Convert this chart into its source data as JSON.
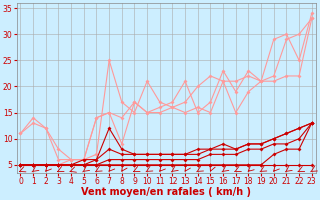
{
  "bg_color": "#cceeff",
  "grid_color": "#aaaaaa",
  "xlabel": "Vent moyen/en rafales ( km/h )",
  "xlabel_color": "#cc0000",
  "xlabel_fontsize": 7,
  "yticks": [
    5,
    10,
    15,
    20,
    25,
    30,
    35
  ],
  "xticks": [
    0,
    1,
    2,
    3,
    4,
    5,
    6,
    7,
    8,
    9,
    10,
    11,
    12,
    13,
    14,
    15,
    16,
    17,
    18,
    19,
    20,
    21,
    22,
    23
  ],
  "xlim": [
    -0.3,
    23.3
  ],
  "ylim": [
    3.5,
    36
  ],
  "tick_color": "#cc0000",
  "tick_fontsize": 5.5,
  "line_pink1_x": [
    0,
    1,
    2,
    3,
    4,
    5,
    6,
    7,
    8,
    9,
    10,
    11,
    12,
    13,
    14,
    15,
    16,
    17,
    18,
    19,
    20,
    21,
    22,
    23
  ],
  "line_pink1_y": [
    11,
    14,
    12,
    6,
    6,
    6,
    14,
    15,
    14,
    17,
    15,
    16,
    17,
    21,
    15,
    17,
    23,
    19,
    23,
    21,
    22,
    29,
    30,
    33
  ],
  "line_pink2_x": [
    0,
    1,
    2,
    3,
    4,
    5,
    6,
    7,
    8,
    9,
    10,
    11,
    12,
    13,
    14,
    15,
    16,
    17,
    18,
    19,
    20,
    21,
    22,
    23
  ],
  "line_pink2_y": [
    5,
    5,
    5,
    5,
    6,
    6,
    7,
    25,
    17,
    15,
    21,
    17,
    16,
    17,
    20,
    22,
    21,
    15,
    19,
    21,
    29,
    30,
    25,
    34
  ],
  "line_pink3_x": [
    0,
    1,
    2,
    3,
    4,
    5,
    6,
    7,
    8,
    9,
    10,
    11,
    12,
    13,
    14,
    15,
    16,
    17,
    18,
    19,
    20,
    21,
    22,
    23
  ],
  "line_pink3_y": [
    11,
    13,
    12,
    8,
    6,
    6,
    14,
    15,
    9,
    17,
    15,
    15,
    16,
    15,
    16,
    15,
    21,
    21,
    22,
    21,
    21,
    22,
    22,
    33
  ],
  "line_red1_x": [
    0,
    1,
    2,
    3,
    4,
    5,
    6,
    7,
    8,
    9,
    10,
    11,
    12,
    13,
    14,
    15,
    16,
    17,
    18,
    19,
    20,
    21,
    22,
    23
  ],
  "line_red1_y": [
    5,
    5,
    5,
    5,
    5,
    5,
    5,
    5,
    5,
    5,
    5,
    5,
    5,
    5,
    5,
    5,
    5,
    5,
    5,
    5,
    5,
    5,
    5,
    5
  ],
  "line_red2_x": [
    0,
    1,
    2,
    3,
    4,
    5,
    6,
    7,
    8,
    9,
    10,
    11,
    12,
    13,
    14,
    15,
    16,
    17,
    18,
    19,
    20,
    21,
    22,
    23
  ],
  "line_red2_y": [
    5,
    5,
    5,
    5,
    5,
    5,
    6,
    12,
    8,
    7,
    7,
    7,
    7,
    7,
    7,
    8,
    8,
    8,
    9,
    9,
    10,
    11,
    12,
    13
  ],
  "line_red3_x": [
    0,
    1,
    2,
    3,
    4,
    5,
    6,
    7,
    8,
    9,
    10,
    11,
    12,
    13,
    14,
    15,
    16,
    17,
    18,
    19,
    20,
    21,
    22,
    23
  ],
  "line_red3_y": [
    5,
    5,
    5,
    5,
    5,
    6,
    6,
    8,
    7,
    7,
    7,
    7,
    7,
    7,
    8,
    8,
    9,
    8,
    9,
    9,
    10,
    11,
    12,
    13
  ],
  "line_red4_x": [
    0,
    1,
    2,
    3,
    4,
    5,
    6,
    7,
    8,
    9,
    10,
    11,
    12,
    13,
    14,
    15,
    16,
    17,
    18,
    19,
    20,
    21,
    22,
    23
  ],
  "line_red4_y": [
    5,
    5,
    5,
    5,
    5,
    5,
    5,
    6,
    6,
    6,
    6,
    6,
    6,
    6,
    6,
    7,
    7,
    7,
    8,
    8,
    9,
    9,
    10,
    13
  ],
  "line_red5_x": [
    0,
    1,
    2,
    3,
    4,
    5,
    6,
    7,
    8,
    9,
    10,
    11,
    12,
    13,
    14,
    15,
    16,
    17,
    18,
    19,
    20,
    21,
    22,
    23
  ],
  "line_red5_y": [
    5,
    5,
    5,
    5,
    5,
    5,
    5,
    5,
    5,
    5,
    5,
    5,
    5,
    5,
    5,
    5,
    5,
    5,
    5,
    5,
    7,
    8,
    8,
    13
  ],
  "pink_color": "#ff9999",
  "red_color": "#cc0000",
  "dark_red_color": "#aa0000",
  "wind_icons_y": 3.8,
  "wind_angles": [
    225,
    210,
    200,
    220,
    230,
    210,
    215,
    200,
    195,
    220,
    215,
    200,
    210,
    195,
    215,
    190,
    210,
    220,
    205,
    215,
    200,
    210,
    220,
    215
  ]
}
